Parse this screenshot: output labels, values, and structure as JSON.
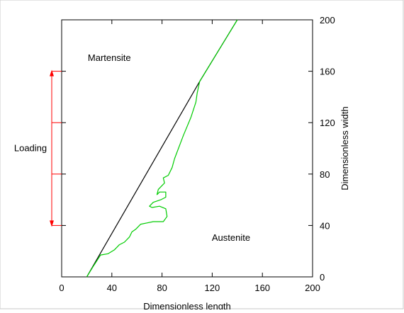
{
  "chart_data": {
    "type": "line",
    "xlabel": "Dimensionless length",
    "ylabel": "Dimensionless width",
    "xlim": [
      0,
      200
    ],
    "ylim": [
      0,
      200
    ],
    "x_ticks": [
      0,
      40,
      80,
      120,
      160,
      200
    ],
    "y_ticks": [
      0,
      40,
      80,
      120,
      160,
      200
    ],
    "y_axis_side": "right",
    "grid": false,
    "series": [
      {
        "color": "#000000",
        "points": [
          [
            20,
            0
          ],
          [
            110,
            152
          ],
          [
            140,
            200
          ]
        ]
      },
      {
        "color": "#00cc00",
        "points": [
          [
            20,
            0
          ],
          [
            25,
            8
          ],
          [
            31,
            17
          ],
          [
            37,
            18
          ],
          [
            42,
            21
          ],
          [
            46,
            25
          ],
          [
            50,
            27
          ],
          [
            54,
            31
          ],
          [
            56,
            35
          ],
          [
            59,
            37
          ],
          [
            63,
            41
          ],
          [
            68,
            42
          ],
          [
            73,
            43
          ],
          [
            81,
            43
          ],
          [
            84,
            47
          ],
          [
            83,
            53
          ],
          [
            78,
            55
          ],
          [
            72,
            54
          ],
          [
            70,
            55
          ],
          [
            73,
            58
          ],
          [
            79,
            60
          ],
          [
            83,
            62
          ],
          [
            83,
            66
          ],
          [
            78,
            66
          ],
          [
            76,
            64
          ],
          [
            77,
            68
          ],
          [
            80,
            71
          ],
          [
            82,
            73
          ],
          [
            81,
            77
          ],
          [
            85,
            79
          ],
          [
            88,
            85
          ],
          [
            90,
            92
          ],
          [
            97,
            110
          ],
          [
            103,
            124
          ],
          [
            107,
            136
          ],
          [
            108,
            143
          ],
          [
            110,
            152
          ],
          [
            120,
            168
          ],
          [
            130,
            184
          ],
          [
            140,
            200
          ]
        ]
      }
    ],
    "region_labels": [
      {
        "text": "Martensite",
        "x": 38,
        "y": 168
      },
      {
        "text": "Austenite",
        "x": 135,
        "y": 28
      }
    ],
    "annotation": {
      "text": "Loading",
      "color": "#ff0000",
      "y_range": [
        40,
        160
      ],
      "ticks": [
        40,
        80,
        120,
        160
      ]
    }
  }
}
